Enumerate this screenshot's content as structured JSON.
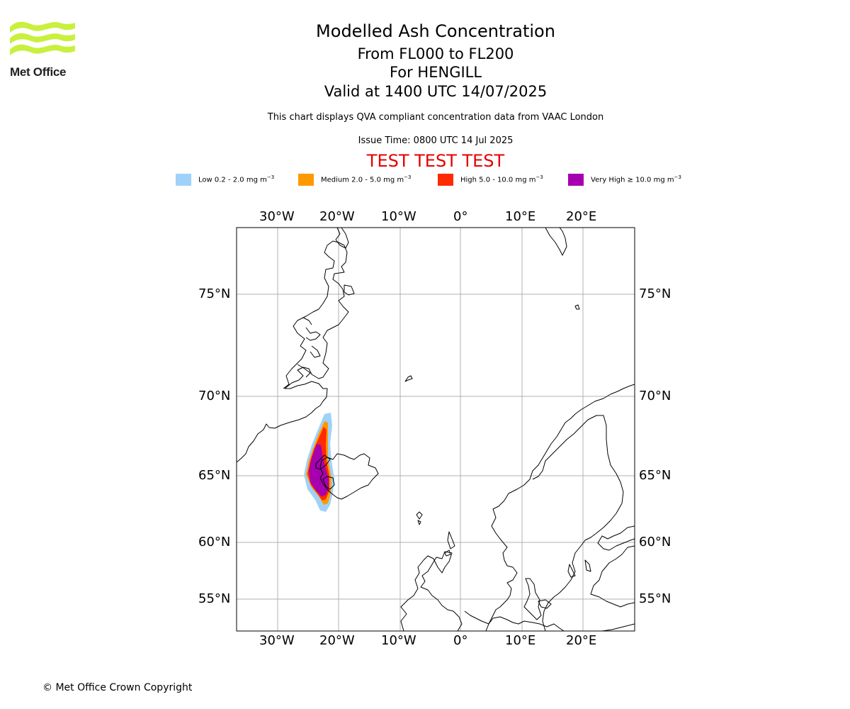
{
  "logo": {
    "text": "Met Office"
  },
  "header": {
    "title": "Modelled Ash Concentration",
    "levels": "From FL000 to FL200",
    "volcano": "For HENGILL",
    "valid": "Valid at 1400 UTC 14/07/2025",
    "subtitle": "This chart displays QVA compliant concentration data from VAAC London",
    "issue_time": "Issue Time: 0800 UTC 14 Jul 2025",
    "test_banner": "TEST TEST TEST"
  },
  "legend": [
    {
      "label": "Low 0.2 - 2.0 mg m",
      "exp": "−3",
      "color": "#9ed2fa"
    },
    {
      "label": "Medium 2.0 - 5.0 mg m",
      "exp": "−3",
      "color": "#ff9900"
    },
    {
      "label": "High 5.0 - 10.0 mg m",
      "exp": "−3",
      "color": "#ff2a00"
    },
    {
      "label": "Very High  ≥  10.0 mg m",
      "exp": "−3",
      "color": "#a600b0"
    }
  ],
  "map": {
    "lon_ticks": [
      "30°W",
      "20°W",
      "10°W",
      "0°",
      "10°E",
      "20°E"
    ],
    "lat_ticks": [
      "75°N",
      "70°N",
      "65°N",
      "60°N",
      "55°N"
    ],
    "lon_range": [
      -36.5,
      29
    ],
    "lat_range": [
      52.5,
      78
    ],
    "grid": true,
    "coastline_color": "#000000",
    "gridline_color": "#b0b0b0"
  },
  "footer": {
    "copyright": "© Met Office Crown Copyright"
  }
}
